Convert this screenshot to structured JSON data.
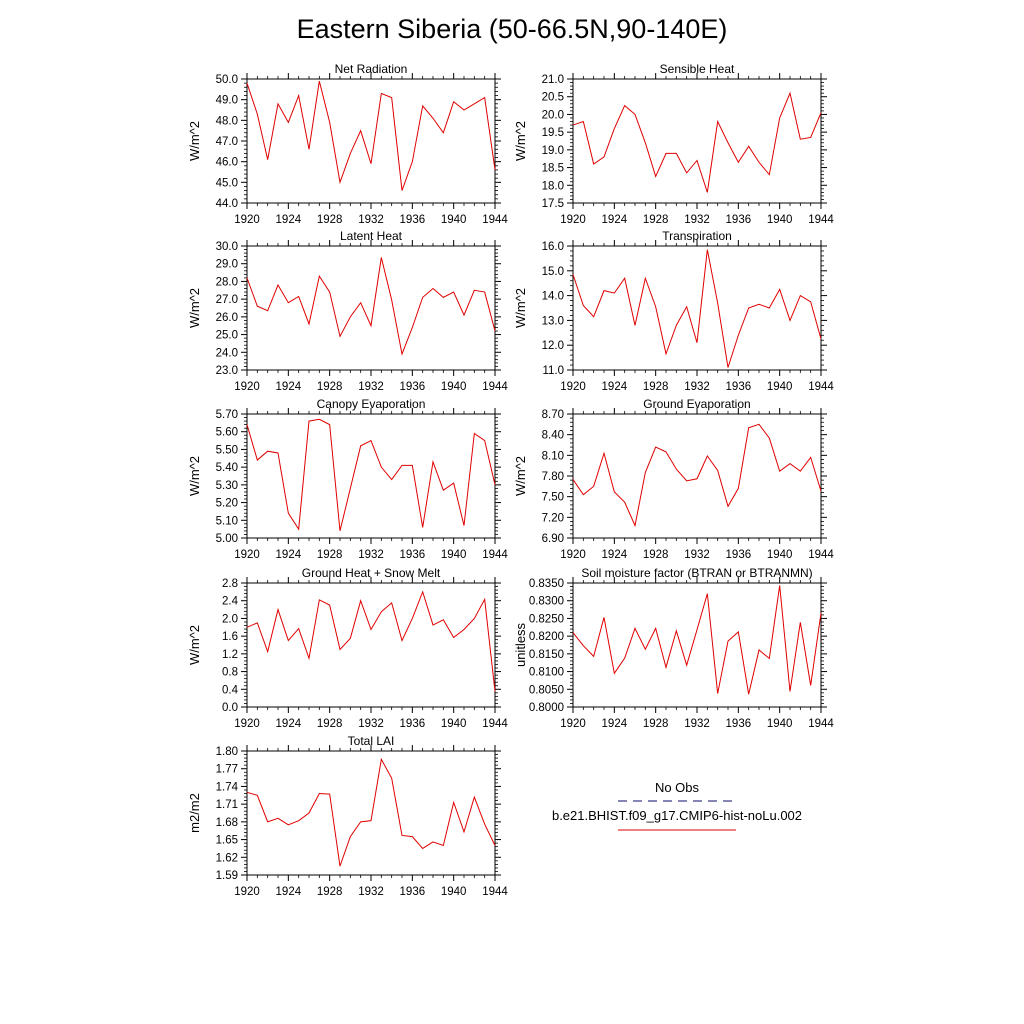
{
  "title": "Eastern Siberia (50-66.5N,90-140E)",
  "colors": {
    "model_line": "#e00000",
    "obs_line": "#3d3d8a",
    "axis": "#000000"
  },
  "legend": {
    "obs_label": "No Obs",
    "model_label": "b.e21.BHIST.f09_g17.CMIP6-hist-noLu.002"
  },
  "chart_data": [
    {
      "type": "line",
      "title": "Net Radiation",
      "xlabel": "",
      "ylabel": "W/m^2",
      "xlim": [
        1920,
        1944
      ],
      "ylim": [
        44.0,
        50.0
      ],
      "xticks": [
        "1920",
        "1924",
        "1928",
        "1932",
        "1936",
        "1940",
        "1944"
      ],
      "yticks": [
        "44.0",
        "45.0",
        "46.0",
        "47.0",
        "48.0",
        "49.0",
        "50.0"
      ],
      "x": [
        1920,
        1921,
        1922,
        1923,
        1924,
        1925,
        1926,
        1927,
        1928,
        1929,
        1930,
        1931,
        1932,
        1933,
        1934,
        1935,
        1936,
        1937,
        1938,
        1939,
        1940,
        1941,
        1942,
        1943,
        1944
      ],
      "values": [
        49.8,
        48.3,
        46.1,
        48.8,
        47.9,
        49.2,
        46.6,
        49.9,
        47.9,
        45.0,
        46.4,
        47.5,
        45.9,
        49.3,
        49.1,
        44.6,
        46.0,
        48.7,
        48.1,
        47.4,
        48.9,
        48.5,
        48.8,
        49.1,
        45.6
      ]
    },
    {
      "type": "line",
      "title": "Sensible Heat",
      "xlabel": "",
      "ylabel": "W/m^2",
      "xlim": [
        1920,
        1944
      ],
      "ylim": [
        17.5,
        21.0
      ],
      "xticks": [
        "1920",
        "1924",
        "1928",
        "1932",
        "1936",
        "1940",
        "1944"
      ],
      "yticks": [
        "17.5",
        "18.0",
        "18.5",
        "19.0",
        "19.5",
        "20.0",
        "20.5",
        "21.0"
      ],
      "x": [
        1920,
        1921,
        1922,
        1923,
        1924,
        1925,
        1926,
        1927,
        1928,
        1929,
        1930,
        1931,
        1932,
        1933,
        1934,
        1935,
        1936,
        1937,
        1938,
        1939,
        1940,
        1941,
        1942,
        1943,
        1944
      ],
      "values": [
        19.7,
        19.8,
        18.6,
        18.8,
        19.6,
        20.25,
        20.0,
        19.2,
        18.25,
        18.9,
        18.9,
        18.35,
        18.7,
        17.8,
        19.8,
        19.2,
        18.65,
        19.1,
        18.65,
        18.3,
        19.9,
        20.6,
        19.3,
        19.35,
        20.05
      ]
    },
    {
      "type": "line",
      "title": "Latent Heat",
      "xlabel": "",
      "ylabel": "W/m^2",
      "xlim": [
        1920,
        1944
      ],
      "ylim": [
        23.0,
        30.0
      ],
      "xticks": [
        "1920",
        "1924",
        "1928",
        "1932",
        "1936",
        "1940",
        "1944"
      ],
      "yticks": [
        "23.0",
        "24.0",
        "25.0",
        "26.0",
        "27.0",
        "28.0",
        "29.0",
        "30.0"
      ],
      "x": [
        1920,
        1921,
        1922,
        1923,
        1924,
        1925,
        1926,
        1927,
        1928,
        1929,
        1930,
        1931,
        1932,
        1933,
        1934,
        1935,
        1936,
        1937,
        1938,
        1939,
        1940,
        1941,
        1942,
        1943,
        1944
      ],
      "values": [
        28.2,
        26.6,
        26.35,
        27.8,
        26.8,
        27.15,
        25.6,
        28.3,
        27.4,
        24.9,
        26.0,
        26.8,
        25.5,
        29.35,
        26.95,
        23.9,
        25.4,
        27.1,
        27.6,
        27.1,
        27.4,
        26.1,
        27.5,
        27.4,
        25.2
      ]
    },
    {
      "type": "line",
      "title": "Transpiration",
      "xlabel": "",
      "ylabel": "W/m^2",
      "xlim": [
        1920,
        1944
      ],
      "ylim": [
        11.0,
        16.0
      ],
      "xticks": [
        "1920",
        "1924",
        "1928",
        "1932",
        "1936",
        "1940",
        "1944"
      ],
      "yticks": [
        "11.0",
        "12.0",
        "13.0",
        "14.0",
        "15.0",
        "16.0"
      ],
      "x": [
        1920,
        1921,
        1922,
        1923,
        1924,
        1925,
        1926,
        1927,
        1928,
        1929,
        1930,
        1931,
        1932,
        1933,
        1934,
        1935,
        1936,
        1937,
        1938,
        1939,
        1940,
        1941,
        1942,
        1943,
        1944
      ],
      "values": [
        14.85,
        13.6,
        13.15,
        14.2,
        14.1,
        14.7,
        12.8,
        14.7,
        13.55,
        11.65,
        12.8,
        13.55,
        12.1,
        15.85,
        13.7,
        11.1,
        12.4,
        13.5,
        13.65,
        13.5,
        14.25,
        13.0,
        14.0,
        13.75,
        12.25
      ]
    },
    {
      "type": "line",
      "title": "Canopy Evaporation",
      "xlabel": "",
      "ylabel": "W/m^2",
      "xlim": [
        1920,
        1944
      ],
      "ylim": [
        5.0,
        5.7
      ],
      "xticks": [
        "1920",
        "1924",
        "1928",
        "1932",
        "1936",
        "1940",
        "1944"
      ],
      "yticks": [
        "5.00",
        "5.10",
        "5.20",
        "5.30",
        "5.40",
        "5.50",
        "5.60",
        "5.70"
      ],
      "x": [
        1920,
        1921,
        1922,
        1923,
        1924,
        1925,
        1926,
        1927,
        1928,
        1929,
        1930,
        1931,
        1932,
        1933,
        1934,
        1935,
        1936,
        1937,
        1938,
        1939,
        1940,
        1941,
        1942,
        1943,
        1944
      ],
      "values": [
        5.64,
        5.44,
        5.49,
        5.48,
        5.14,
        5.05,
        5.66,
        5.67,
        5.64,
        5.04,
        5.28,
        5.52,
        5.55,
        5.4,
        5.33,
        5.41,
        5.41,
        5.06,
        5.43,
        5.27,
        5.31,
        5.07,
        5.59,
        5.55,
        5.3
      ]
    },
    {
      "type": "line",
      "title": "Ground Evaporation",
      "xlabel": "",
      "ylabel": "W/m^2",
      "xlim": [
        1920,
        1944
      ],
      "ylim": [
        6.9,
        8.7
      ],
      "xticks": [
        "1920",
        "1924",
        "1928",
        "1932",
        "1936",
        "1940",
        "1944"
      ],
      "yticks": [
        "6.90",
        "7.20",
        "7.50",
        "7.80",
        "8.10",
        "8.40",
        "8.70"
      ],
      "x": [
        1920,
        1921,
        1922,
        1923,
        1924,
        1925,
        1926,
        1927,
        1928,
        1929,
        1930,
        1931,
        1932,
        1933,
        1934,
        1935,
        1936,
        1937,
        1938,
        1939,
        1940,
        1941,
        1942,
        1943,
        1944
      ],
      "values": [
        7.75,
        7.53,
        7.65,
        8.13,
        7.57,
        7.42,
        7.08,
        7.85,
        8.22,
        8.15,
        7.9,
        7.73,
        7.76,
        8.09,
        7.88,
        7.36,
        7.62,
        8.5,
        8.55,
        8.35,
        7.87,
        7.98,
        7.87,
        8.07,
        7.58
      ]
    },
    {
      "type": "line",
      "title": "Ground Heat + Snow Melt",
      "xlabel": "",
      "ylabel": "W/m^2",
      "xlim": [
        1920,
        1944
      ],
      "ylim": [
        0.0,
        2.8
      ],
      "xticks": [
        "1920",
        "1924",
        "1928",
        "1932",
        "1936",
        "1940",
        "1944"
      ],
      "yticks": [
        "0.0",
        "0.4",
        "0.8",
        "1.2",
        "1.6",
        "2.0",
        "2.4",
        "2.8"
      ],
      "x": [
        1920,
        1921,
        1922,
        1923,
        1924,
        1925,
        1926,
        1927,
        1928,
        1929,
        1930,
        1931,
        1932,
        1933,
        1934,
        1935,
        1936,
        1937,
        1938,
        1939,
        1940,
        1941,
        1942,
        1943,
        1944
      ],
      "values": [
        1.8,
        1.9,
        1.25,
        2.2,
        1.5,
        1.77,
        1.1,
        2.42,
        2.3,
        1.3,
        1.55,
        2.4,
        1.75,
        2.15,
        2.35,
        1.5,
        2.0,
        2.6,
        1.85,
        1.97,
        1.57,
        1.75,
        2.0,
        2.43,
        0.35
      ]
    },
    {
      "type": "line",
      "title": "Soil moisture factor (BTRAN or BTRANMN)",
      "xlabel": "",
      "ylabel": "unitless",
      "xlim": [
        1920,
        1944
      ],
      "ylim": [
        0.8,
        0.835
      ],
      "xticks": [
        "1920",
        "1924",
        "1928",
        "1932",
        "1936",
        "1940",
        "1944"
      ],
      "yticks": [
        "0.8000",
        "0.8050",
        "0.8100",
        "0.8150",
        "0.8200",
        "0.8250",
        "0.8300",
        "0.8350"
      ],
      "x": [
        1920,
        1921,
        1922,
        1923,
        1924,
        1925,
        1926,
        1927,
        1928,
        1929,
        1930,
        1931,
        1932,
        1933,
        1934,
        1935,
        1936,
        1937,
        1938,
        1939,
        1940,
        1941,
        1942,
        1943,
        1944
      ],
      "values": [
        0.821,
        0.8173,
        0.8143,
        0.8253,
        0.8095,
        0.8138,
        0.8222,
        0.8163,
        0.8222,
        0.8112,
        0.8215,
        0.8118,
        0.8218,
        0.832,
        0.8038,
        0.8186,
        0.8212,
        0.8036,
        0.8161,
        0.8137,
        0.8343,
        0.8044,
        0.8239,
        0.8061,
        0.8265
      ]
    },
    {
      "type": "line",
      "title": "Total LAI",
      "xlabel": "",
      "ylabel": "m2/m2",
      "xlim": [
        1920,
        1944
      ],
      "ylim": [
        1.59,
        1.8
      ],
      "xticks": [
        "1920",
        "1924",
        "1928",
        "1932",
        "1936",
        "1940",
        "1944"
      ],
      "yticks": [
        "1.59",
        "1.62",
        "1.65",
        "1.68",
        "1.71",
        "1.74",
        "1.77",
        "1.80"
      ],
      "x": [
        1920,
        1921,
        1922,
        1923,
        1924,
        1925,
        1926,
        1927,
        1928,
        1929,
        1930,
        1931,
        1932,
        1933,
        1934,
        1935,
        1936,
        1937,
        1938,
        1939,
        1940,
        1941,
        1942,
        1943,
        1944
      ],
      "values": [
        1.73,
        1.725,
        1.68,
        1.686,
        1.675,
        1.682,
        1.695,
        1.728,
        1.727,
        1.605,
        1.655,
        1.68,
        1.682,
        1.786,
        1.754,
        1.657,
        1.655,
        1.635,
        1.646,
        1.64,
        1.713,
        1.663,
        1.722,
        1.676,
        1.64
      ]
    }
  ]
}
